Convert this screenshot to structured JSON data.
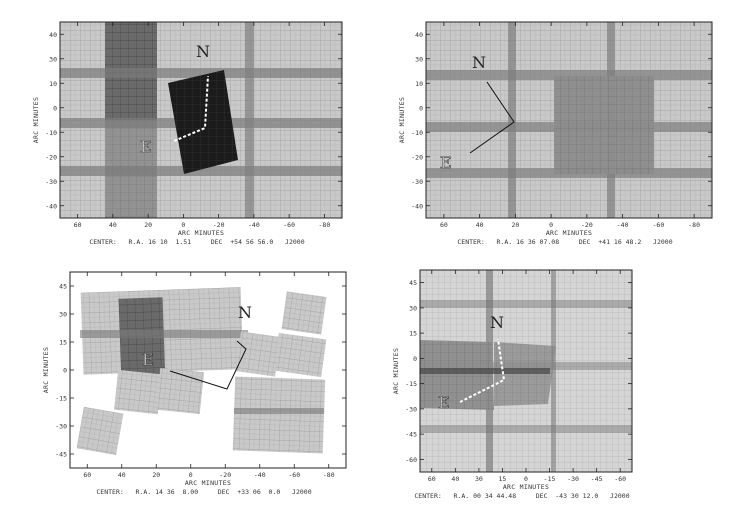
{
  "figure": {
    "panels": [
      {
        "id": "top-left",
        "x_ticks": [
          "60",
          "40",
          "20",
          "0",
          "-20",
          "-40",
          "-60",
          "-80"
        ],
        "y_ticks": [
          "40",
          "30",
          "10",
          "0",
          "-10",
          "-20",
          "-30",
          "-40"
        ],
        "xlabel": "ARC MINUTES",
        "ylabel": "ARC MINUTES",
        "caption": "CENTER:   R.A. 16 10  1.51     DEC  +54 56 56.0   J2000",
        "compass_n": "N",
        "compass_e": "E",
        "compass_color": "white"
      },
      {
        "id": "top-right",
        "x_ticks": [
          "60",
          "40",
          "20",
          "0",
          "-20",
          "-40",
          "-60",
          "-80"
        ],
        "y_ticks": [
          "40",
          "30",
          "10",
          "0",
          "-10",
          "-20",
          "-30",
          "-40"
        ],
        "xlabel": "ARC MINUTES",
        "ylabel": "ARC MINUTES",
        "caption": "CENTER:   R.A. 16 36 07.08     DEC  +41 16 48.2   J2000",
        "compass_n": "N",
        "compass_e": "E",
        "compass_color": "black"
      },
      {
        "id": "bottom-left",
        "x_ticks": [
          "60",
          "40",
          "20",
          "0",
          "-20",
          "-40",
          "-60",
          "-80"
        ],
        "y_ticks": [
          "45",
          "30",
          "15",
          "0",
          "-15",
          "-30",
          "-45"
        ],
        "xlabel": "ARC MINUTES",
        "ylabel": "ARC MINUTES",
        "caption": "CENTER:   R.A. 14 36  8.00     DEC  +33 06  0.0   J2000",
        "compass_n": "N",
        "compass_e": "E",
        "compass_color": "black"
      },
      {
        "id": "bottom-right",
        "x_ticks": [
          "60",
          "40",
          "30",
          "15",
          "0",
          "-15",
          "-30",
          "-45",
          "-60"
        ],
        "y_ticks": [
          "45",
          "30",
          "15",
          "0",
          "-15",
          "-30",
          "-45",
          "-60"
        ],
        "xlabel": "ARC MINUTES",
        "ylabel": "ARC MINUTES",
        "caption": "CENTER:   R.A. 00 34 44.48     DEC  -43 30 12.0   J2000",
        "compass_n": "N",
        "compass_e": "E",
        "compass_color": "white"
      }
    ]
  }
}
